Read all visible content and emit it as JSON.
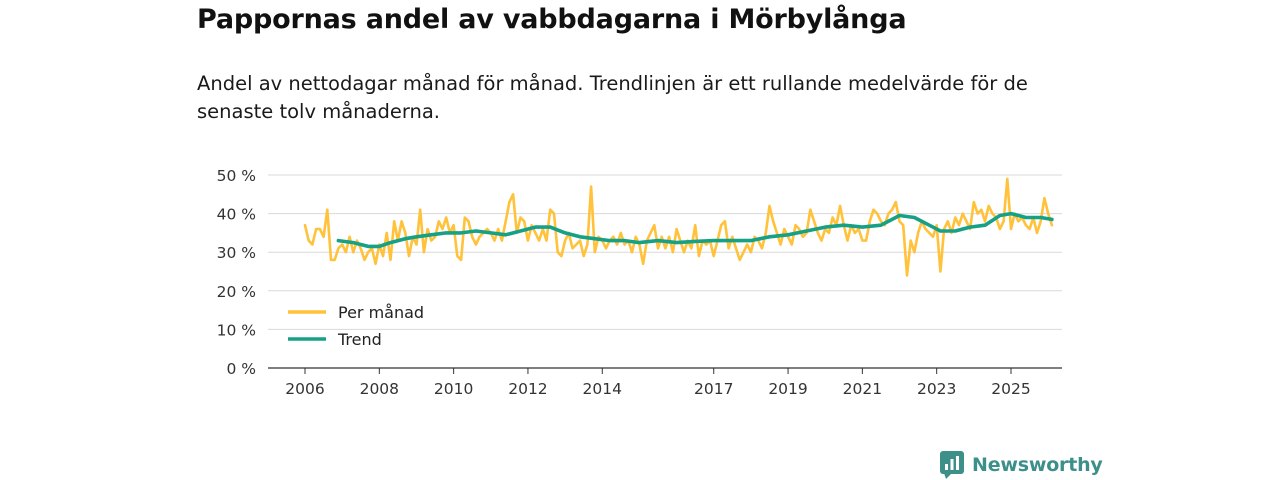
{
  "title": "Pappornas andel av vabbdagarna i Mörbylånga",
  "subtitle": "Andel av nettodagar månad för månad. Trendlinjen är ett rullande medelvärde för de senaste tolv månaderna.",
  "brand": {
    "name": "Newsworthy",
    "logo_icon": "bar-chart-icon"
  },
  "chart_data": {
    "type": "line",
    "xlabel": "",
    "ylabel": "",
    "x_range": [
      2005.5,
      2026.2
    ],
    "ylim": [
      0,
      50
    ],
    "y_ticks": [
      0,
      10,
      20,
      30,
      40,
      50
    ],
    "y_tick_labels": [
      "0 %",
      "10 %",
      "20 %",
      "30 %",
      "40 %",
      "50 %"
    ],
    "x_ticks": [
      2006,
      2008,
      2010,
      2012,
      2014,
      2017,
      2019,
      2021,
      2023,
      2025
    ],
    "x_tick_labels": [
      "2006",
      "2008",
      "2010",
      "2012",
      "2014",
      "2017",
      "2019",
      "2021",
      "2023",
      "2025"
    ],
    "grid": true,
    "legend_position": "bottom-left",
    "series": [
      {
        "name": "Per månad",
        "color": "#ffc23a",
        "points": [
          [
            2006.0,
            37
          ],
          [
            2006.1,
            33
          ],
          [
            2006.2,
            32
          ],
          [
            2006.3,
            36
          ],
          [
            2006.4,
            36
          ],
          [
            2006.5,
            34
          ],
          [
            2006.6,
            41
          ],
          [
            2006.7,
            28
          ],
          [
            2006.8,
            28
          ],
          [
            2006.9,
            31
          ],
          [
            2007.0,
            32
          ],
          [
            2007.1,
            30
          ],
          [
            2007.2,
            34
          ],
          [
            2007.3,
            30
          ],
          [
            2007.4,
            33
          ],
          [
            2007.5,
            31
          ],
          [
            2007.6,
            28
          ],
          [
            2007.7,
            30
          ],
          [
            2007.8,
            31
          ],
          [
            2007.9,
            27
          ],
          [
            2008.0,
            32
          ],
          [
            2008.1,
            29
          ],
          [
            2008.2,
            35
          ],
          [
            2008.3,
            28
          ],
          [
            2008.4,
            38
          ],
          [
            2008.5,
            33
          ],
          [
            2008.6,
            38
          ],
          [
            2008.7,
            35
          ],
          [
            2008.8,
            29
          ],
          [
            2008.9,
            34
          ],
          [
            2009.0,
            32
          ],
          [
            2009.1,
            41
          ],
          [
            2009.2,
            30
          ],
          [
            2009.3,
            36
          ],
          [
            2009.4,
            33
          ],
          [
            2009.5,
            34
          ],
          [
            2009.6,
            38
          ],
          [
            2009.7,
            36
          ],
          [
            2009.8,
            39
          ],
          [
            2009.9,
            35
          ],
          [
            2010.0,
            37
          ],
          [
            2010.1,
            29
          ],
          [
            2010.2,
            28
          ],
          [
            2010.3,
            39
          ],
          [
            2010.4,
            38
          ],
          [
            2010.5,
            34
          ],
          [
            2010.6,
            32
          ],
          [
            2010.7,
            34
          ],
          [
            2010.8,
            35
          ],
          [
            2010.9,
            36
          ],
          [
            2011.0,
            35
          ],
          [
            2011.1,
            33
          ],
          [
            2011.2,
            36
          ],
          [
            2011.3,
            33
          ],
          [
            2011.4,
            38
          ],
          [
            2011.5,
            43
          ],
          [
            2011.6,
            45
          ],
          [
            2011.7,
            35
          ],
          [
            2011.8,
            39
          ],
          [
            2011.9,
            38
          ],
          [
            2012.0,
            33
          ],
          [
            2012.1,
            37
          ],
          [
            2012.2,
            35
          ],
          [
            2012.3,
            33
          ],
          [
            2012.4,
            36
          ],
          [
            2012.5,
            33
          ],
          [
            2012.6,
            41
          ],
          [
            2012.7,
            40
          ],
          [
            2012.8,
            30
          ],
          [
            2012.9,
            29
          ],
          [
            2013.0,
            33
          ],
          [
            2013.1,
            35
          ],
          [
            2013.2,
            31
          ],
          [
            2013.3,
            32
          ],
          [
            2013.4,
            33
          ],
          [
            2013.5,
            29
          ],
          [
            2013.6,
            32
          ],
          [
            2013.7,
            47
          ],
          [
            2013.8,
            30
          ],
          [
            2013.9,
            34
          ],
          [
            2014.0,
            33
          ],
          [
            2014.1,
            31
          ],
          [
            2014.2,
            33
          ],
          [
            2014.3,
            34
          ],
          [
            2014.4,
            32
          ],
          [
            2014.5,
            35
          ],
          [
            2014.6,
            32
          ],
          [
            2014.7,
            33
          ],
          [
            2014.8,
            30
          ],
          [
            2014.9,
            34
          ],
          [
            2015.0,
            32
          ],
          [
            2015.1,
            27
          ],
          [
            2015.2,
            33
          ],
          [
            2015.3,
            35
          ],
          [
            2015.4,
            37
          ],
          [
            2015.5,
            31
          ],
          [
            2015.6,
            34
          ],
          [
            2015.7,
            31
          ],
          [
            2015.8,
            34
          ],
          [
            2015.9,
            30
          ],
          [
            2016.0,
            36
          ],
          [
            2016.1,
            33
          ],
          [
            2016.2,
            30
          ],
          [
            2016.3,
            33
          ],
          [
            2016.4,
            31
          ],
          [
            2016.5,
            37
          ],
          [
            2016.6,
            29
          ],
          [
            2016.7,
            33
          ],
          [
            2016.8,
            32
          ],
          [
            2016.9,
            33
          ],
          [
            2017.0,
            29
          ],
          [
            2017.1,
            33
          ],
          [
            2017.2,
            37
          ],
          [
            2017.3,
            38
          ],
          [
            2017.4,
            31
          ],
          [
            2017.5,
            34
          ],
          [
            2017.6,
            31
          ],
          [
            2017.7,
            28
          ],
          [
            2017.8,
            30
          ],
          [
            2017.9,
            32
          ],
          [
            2018.0,
            30
          ],
          [
            2018.1,
            34
          ],
          [
            2018.2,
            33
          ],
          [
            2018.3,
            31
          ],
          [
            2018.4,
            35
          ],
          [
            2018.5,
            42
          ],
          [
            2018.6,
            38
          ],
          [
            2018.7,
            35
          ],
          [
            2018.8,
            32
          ],
          [
            2018.9,
            36
          ],
          [
            2019.0,
            34
          ],
          [
            2019.1,
            32
          ],
          [
            2019.2,
            37
          ],
          [
            2019.3,
            36
          ],
          [
            2019.4,
            34
          ],
          [
            2019.5,
            35
          ],
          [
            2019.6,
            41
          ],
          [
            2019.7,
            38
          ],
          [
            2019.8,
            35
          ],
          [
            2019.9,
            33
          ],
          [
            2020.0,
            36
          ],
          [
            2020.1,
            35
          ],
          [
            2020.2,
            39
          ],
          [
            2020.3,
            37
          ],
          [
            2020.4,
            42
          ],
          [
            2020.5,
            37
          ],
          [
            2020.6,
            33
          ],
          [
            2020.7,
            37
          ],
          [
            2020.8,
            35
          ],
          [
            2020.9,
            36
          ],
          [
            2021.0,
            33
          ],
          [
            2021.1,
            33
          ],
          [
            2021.2,
            38
          ],
          [
            2021.3,
            41
          ],
          [
            2021.4,
            40
          ],
          [
            2021.5,
            38
          ],
          [
            2021.6,
            37
          ],
          [
            2021.7,
            40
          ],
          [
            2021.8,
            41
          ],
          [
            2021.9,
            43
          ],
          [
            2022.0,
            38
          ],
          [
            2022.1,
            37
          ],
          [
            2022.2,
            24
          ],
          [
            2022.3,
            33
          ],
          [
            2022.4,
            30
          ],
          [
            2022.5,
            35
          ],
          [
            2022.6,
            38
          ],
          [
            2022.7,
            36
          ],
          [
            2022.8,
            35
          ],
          [
            2022.9,
            34
          ],
          [
            2023.0,
            37
          ],
          [
            2023.1,
            25
          ],
          [
            2023.2,
            36
          ],
          [
            2023.3,
            38
          ],
          [
            2023.4,
            35
          ],
          [
            2023.5,
            39
          ],
          [
            2023.6,
            37
          ],
          [
            2023.7,
            40
          ],
          [
            2023.8,
            38
          ],
          [
            2023.9,
            36
          ],
          [
            2024.0,
            43
          ],
          [
            2024.1,
            40
          ],
          [
            2024.2,
            41
          ],
          [
            2024.3,
            38
          ],
          [
            2024.4,
            42
          ],
          [
            2024.5,
            40
          ],
          [
            2024.6,
            39
          ],
          [
            2024.7,
            36
          ],
          [
            2024.8,
            38
          ],
          [
            2024.9,
            49
          ],
          [
            2025.0,
            36
          ],
          [
            2025.1,
            40
          ],
          [
            2025.2,
            38
          ],
          [
            2025.3,
            39
          ],
          [
            2025.4,
            37
          ],
          [
            2025.5,
            36
          ],
          [
            2025.6,
            39
          ],
          [
            2025.7,
            35
          ],
          [
            2025.8,
            38
          ],
          [
            2025.9,
            44
          ],
          [
            2026.0,
            40
          ],
          [
            2026.1,
            37
          ]
        ]
      },
      {
        "name": "Trend",
        "color": "#16a085",
        "points": [
          [
            2006.9,
            33
          ],
          [
            2007.3,
            32.5
          ],
          [
            2007.7,
            31.5
          ],
          [
            2008.0,
            31.5
          ],
          [
            2008.3,
            32.5
          ],
          [
            2008.7,
            33.5
          ],
          [
            2009.0,
            34
          ],
          [
            2009.4,
            34.5
          ],
          [
            2009.8,
            35
          ],
          [
            2010.2,
            35
          ],
          [
            2010.6,
            35.5
          ],
          [
            2011.0,
            35
          ],
          [
            2011.4,
            34.5
          ],
          [
            2011.8,
            35.5
          ],
          [
            2012.2,
            36.5
          ],
          [
            2012.6,
            36.5
          ],
          [
            2013.0,
            35
          ],
          [
            2013.4,
            34
          ],
          [
            2013.8,
            33.5
          ],
          [
            2014.2,
            33
          ],
          [
            2014.6,
            33
          ],
          [
            2015.0,
            32.5
          ],
          [
            2015.5,
            33
          ],
          [
            2016.0,
            32.5
          ],
          [
            2016.5,
            32.8
          ],
          [
            2017.0,
            33
          ],
          [
            2017.5,
            33
          ],
          [
            2018.0,
            33
          ],
          [
            2018.5,
            34
          ],
          [
            2019.0,
            34.5
          ],
          [
            2019.5,
            35.5
          ],
          [
            2020.0,
            36.5
          ],
          [
            2020.5,
            37
          ],
          [
            2021.0,
            36.5
          ],
          [
            2021.5,
            37
          ],
          [
            2022.0,
            39.5
          ],
          [
            2022.4,
            39
          ],
          [
            2022.8,
            37
          ],
          [
            2023.1,
            35.5
          ],
          [
            2023.5,
            35.5
          ],
          [
            2023.9,
            36.5
          ],
          [
            2024.3,
            37
          ],
          [
            2024.7,
            39.5
          ],
          [
            2025.0,
            40
          ],
          [
            2025.4,
            39
          ],
          [
            2025.8,
            39
          ],
          [
            2026.1,
            38.5
          ]
        ]
      }
    ]
  }
}
